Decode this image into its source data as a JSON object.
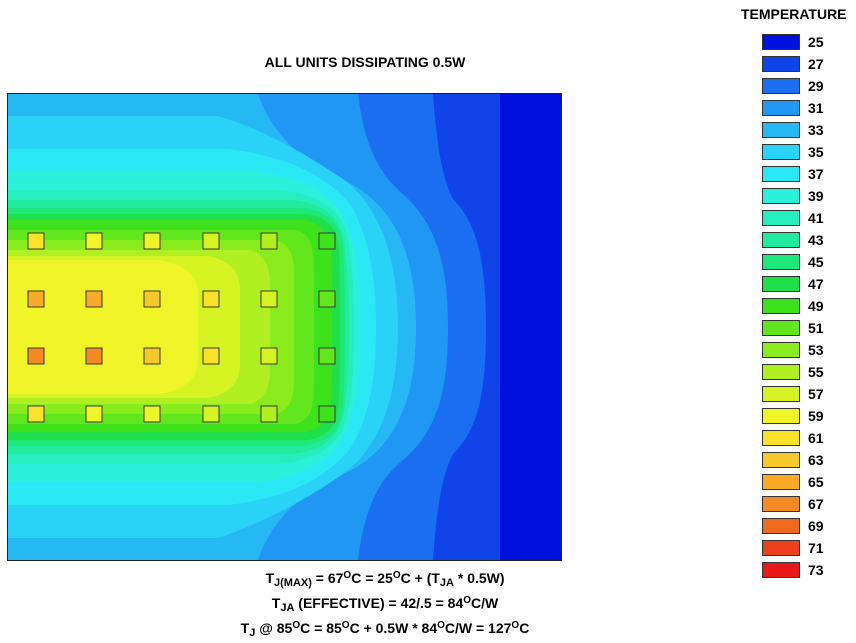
{
  "title": "ALL UNITS DISSIPATING 0.5W",
  "legend": {
    "title": "TEMPERATURE",
    "items": [
      {
        "label": "25",
        "color": "#0011dd"
      },
      {
        "label": "27",
        "color": "#1044e8"
      },
      {
        "label": "29",
        "color": "#1a6ff0"
      },
      {
        "label": "31",
        "color": "#1f97f3"
      },
      {
        "label": "33",
        "color": "#25b8f5"
      },
      {
        "label": "35",
        "color": "#29d2f6"
      },
      {
        "label": "37",
        "color": "#2be9f4"
      },
      {
        "label": "39",
        "color": "#2bf0da"
      },
      {
        "label": "41",
        "color": "#27eebf"
      },
      {
        "label": "43",
        "color": "#22eb9e"
      },
      {
        "label": "45",
        "color": "#1ee77b"
      },
      {
        "label": "47",
        "color": "#1fe04a"
      },
      {
        "label": "49",
        "color": "#3de21d"
      },
      {
        "label": "51",
        "color": "#62e61e"
      },
      {
        "label": "53",
        "color": "#8aeb1f"
      },
      {
        "label": "55",
        "color": "#b0ef22"
      },
      {
        "label": "57",
        "color": "#d6f324"
      },
      {
        "label": "59",
        "color": "#eff526"
      },
      {
        "label": "61",
        "color": "#f8e22a"
      },
      {
        "label": "63",
        "color": "#f8c82a"
      },
      {
        "label": "65",
        "color": "#f8aa28"
      },
      {
        "label": "67",
        "color": "#f38a24"
      },
      {
        "label": "69",
        "color": "#ef6a20"
      },
      {
        "label": "71",
        "color": "#ec401c"
      },
      {
        "label": "73",
        "color": "#e8171a"
      }
    ]
  },
  "equations": {
    "line1": {
      "t": "T",
      "sub1": "J(MAX)",
      "a": " = 67",
      "sup1": "O",
      "b": "C = 25",
      "sup2": "O",
      "c": "C + (T",
      "sub2": "JA",
      "d": " * 0.5W)"
    },
    "line2": {
      "t": "T",
      "sub1": "JA",
      "a": " (EFFECTIVE) = 42/.5 = 84",
      "sup1": "O",
      "b": "C/W"
    },
    "line3": {
      "t": "T",
      "sub1": "J",
      "a": " @ 85",
      "sup1": "O",
      "b": "C = 85",
      "sup2": "O",
      "c": "C + 0.5W * 84",
      "sup3": "O",
      "d": "C/W = 127",
      "sup4": "O",
      "e": "C"
    }
  },
  "units": {
    "rows": [
      [
        "61",
        "59",
        "59",
        "57",
        "55",
        "49"
      ],
      [
        "65",
        "65",
        "63",
        "61",
        "57",
        "51"
      ],
      [
        "67",
        "67",
        "63",
        "61",
        "57",
        "51"
      ],
      [
        "61",
        "59",
        "59",
        "57",
        "55",
        "49"
      ]
    ]
  }
}
